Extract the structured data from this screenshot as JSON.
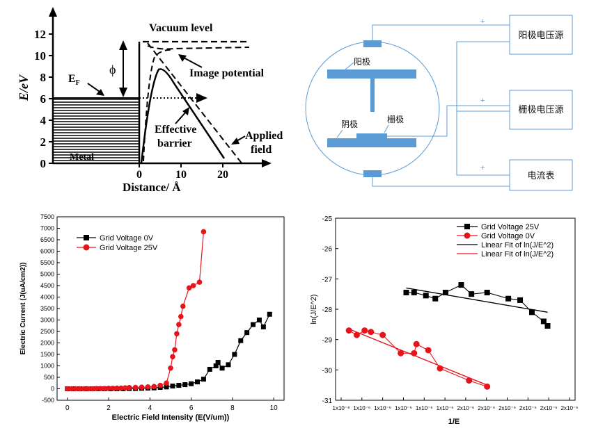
{
  "panel_a": {
    "ylabel": "E/eV",
    "xlabel": "Distance/ Å",
    "yticks": [
      "0",
      "2",
      "4",
      "6",
      "8",
      "10",
      "12"
    ],
    "xticks": [
      "0",
      "10",
      "20"
    ],
    "labels": {
      "vacuum": "Vacuum level",
      "image": "Image potential",
      "effective_1": "Effective",
      "effective_2": "barrier",
      "applied_1": "Applied",
      "applied_2": "field",
      "ef": "E",
      "ef_sub": "F",
      "phi": "ϕ",
      "metal": "Metal"
    }
  },
  "panel_b": {
    "anode": "阳极",
    "cathode": "阴极",
    "grid": "栅极",
    "box_anode": "阳极电压源",
    "box_grid": "栅极电压源",
    "box_meter": "电流表",
    "plus": "+"
  },
  "chart_data": [
    {
      "type": "line",
      "xlabel": "Electric Field Intensity (E(V/um))",
      "ylabel": "Electric Current (J(uA/cm2))",
      "xlim": [
        -0.5,
        10.5
      ],
      "ylim": [
        -500,
        7500
      ],
      "xticks": [
        "0",
        "2",
        "4",
        "6",
        "8",
        "10"
      ],
      "yticks": [
        "-500",
        "0",
        "500",
        "1000",
        "1500",
        "2000",
        "2500",
        "3000",
        "3500",
        "4000",
        "4500",
        "5000",
        "5500",
        "6000",
        "6500",
        "7000",
        "7500"
      ],
      "legend_position": "top-left",
      "series": [
        {
          "name": "Grid Voltage 0V",
          "color": "#000000",
          "marker": "square",
          "x": [
            0,
            0.3,
            0.6,
            0.9,
            1.2,
            1.5,
            1.8,
            2.1,
            2.4,
            2.7,
            3.0,
            3.3,
            3.6,
            3.9,
            4.2,
            4.5,
            4.8,
            5.1,
            5.4,
            5.7,
            6.0,
            6.3,
            6.6,
            6.9,
            7.2,
            7.3,
            7.5,
            7.8,
            8.1,
            8.4,
            8.7,
            9.0,
            9.3,
            9.5,
            9.8
          ],
          "y": [
            0,
            0,
            0,
            0,
            0,
            0,
            0,
            0,
            0,
            0,
            10,
            10,
            20,
            30,
            40,
            60,
            80,
            120,
            150,
            180,
            220,
            300,
            420,
            850,
            1000,
            1150,
            900,
            1050,
            1500,
            2100,
            2450,
            2800,
            3000,
            2700,
            3250
          ]
        },
        {
          "name": "Grid Voltage 25V",
          "color": "#e8141c",
          "marker": "circle",
          "x": [
            0,
            0.2,
            0.4,
            0.6,
            0.8,
            1.0,
            1.2,
            1.4,
            1.6,
            1.8,
            2.0,
            2.2,
            2.4,
            2.6,
            2.8,
            3.0,
            3.3,
            3.6,
            3.9,
            4.2,
            4.5,
            4.8,
            5.0,
            5.1,
            5.2,
            5.3,
            5.4,
            5.5,
            5.6,
            5.9,
            6.1,
            6.4,
            6.6
          ],
          "y": [
            0,
            0,
            0,
            0,
            0,
            0,
            0,
            10,
            10,
            10,
            20,
            20,
            30,
            30,
            40,
            50,
            60,
            70,
            80,
            100,
            150,
            250,
            900,
            1400,
            1700,
            2400,
            2800,
            3150,
            3600,
            4400,
            4500,
            4650,
            6850
          ]
        }
      ]
    },
    {
      "type": "line",
      "xlabel": "1/E",
      "ylabel": "ln(J/E^2)",
      "ylim": [
        -31,
        -25
      ],
      "yticks": [
        "-31",
        "-30",
        "-29",
        "-28",
        "-27",
        "-26",
        "-25"
      ],
      "xticks": [
        "1x10⁻⁸",
        "1x10⁻⁶",
        "1x10⁻⁶",
        "1x10⁻⁶",
        "1x10⁻⁶",
        "1x10⁻⁶",
        "2x10⁻⁶",
        "2x10⁻⁶",
        "2x10⁻⁶",
        "2x10⁻⁶",
        "2x10⁻⁶",
        "2x10⁻⁶"
      ],
      "legend_position": "top-right",
      "series": [
        {
          "name": "Grid Voltage 25V",
          "color": "#000000",
          "marker": "square",
          "x": [
            0.9,
            1.0,
            1.15,
            1.27,
            1.4,
            1.6,
            1.73,
            1.93,
            2.2,
            2.35,
            2.5,
            2.65,
            2.7
          ],
          "y": [
            -27.45,
            -27.45,
            -27.55,
            -27.65,
            -27.45,
            -27.2,
            -27.5,
            -27.45,
            -27.65,
            -27.7,
            -28.1,
            -28.4,
            -28.55
          ]
        },
        {
          "name": "Grid Voltage  0V",
          "color": "#e8141c",
          "marker": "circle",
          "x": [
            0.17,
            0.27,
            0.37,
            0.45,
            0.6,
            0.83,
            1.0,
            1.03,
            1.18,
            1.33,
            1.7,
            1.93
          ],
          "y": [
            -28.7,
            -28.85,
            -28.7,
            -28.75,
            -28.85,
            -29.45,
            -29.45,
            -29.15,
            -29.35,
            -29.95,
            -30.35,
            -30.55
          ]
        },
        {
          "name": "Linear Fit of ln(J/E^2)",
          "color": "#000000",
          "line_only": true,
          "x": [
            0.9,
            2.7
          ],
          "y": [
            -27.3,
            -28.1
          ]
        },
        {
          "name": "Linear Fit of ln(J/E^2)",
          "color": "#e8141c",
          "line_only": true,
          "x": [
            0.17,
            1.93
          ],
          "y": [
            -28.65,
            -30.5
          ]
        }
      ]
    }
  ]
}
